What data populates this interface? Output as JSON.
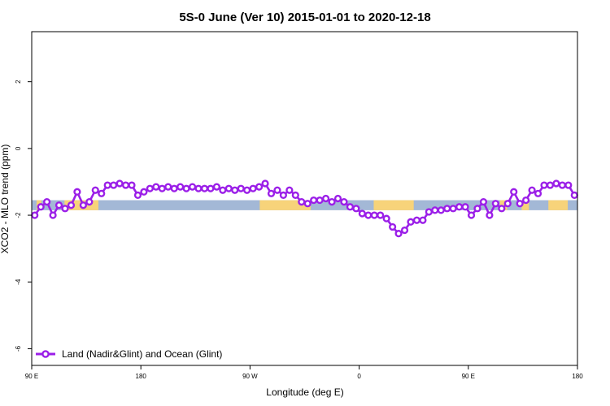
{
  "chart_data": {
    "type": "line",
    "title": "5S-0 June (Ver 10)   2015-01-01 to 2020-12-18",
    "xlabel": "Longitude (deg E)",
    "ylabel": "XCO2 - MLO trend (ppm)",
    "x_ticks": [
      {
        "value": 90,
        "label": "90 E"
      },
      {
        "value": 180,
        "label": "180"
      },
      {
        "value": 270,
        "label": "90 W"
      },
      {
        "value": 360,
        "label": "0"
      },
      {
        "value": 450,
        "label": "90 E"
      },
      {
        "value": 540,
        "label": "180"
      }
    ],
    "y_ticks": [
      {
        "value": 2,
        "label": "2"
      },
      {
        "value": 0,
        "label": "0"
      },
      {
        "value": -2,
        "label": "-2"
      },
      {
        "value": -4,
        "label": "-4"
      },
      {
        "value": -6,
        "label": "-6"
      }
    ],
    "xlim": [
      90,
      540
    ],
    "ylim": [
      -6.5,
      3.5
    ],
    "grid": false,
    "legend_position": "bottom-left",
    "band": {
      "y_range": [
        -1.85,
        -1.55
      ],
      "ocean_color": "#a3b8d6",
      "land_color": "#f7d37a",
      "land_segments": [
        [
          94,
          98
        ],
        [
          117,
          145
        ],
        [
          278,
          320
        ],
        [
          372,
          405
        ],
        [
          476,
          482
        ],
        [
          494,
          500
        ],
        [
          516,
          532
        ]
      ]
    },
    "series": [
      {
        "name": "Land (Nadir&Glint) and Ocean (Glint)",
        "color": "#9b1fe8",
        "x": [
          92.5,
          97.5,
          102.5,
          107.5,
          112.5,
          117.5,
          122.5,
          127.5,
          132.5,
          137.5,
          142.5,
          147.5,
          152.5,
          157.5,
          162.5,
          167.5,
          172.5,
          177.5,
          182.5,
          187.5,
          192.5,
          197.5,
          202.5,
          207.5,
          212.5,
          217.5,
          222.5,
          227.5,
          232.5,
          237.5,
          242.5,
          247.5,
          252.5,
          257.5,
          262.5,
          267.5,
          272.5,
          277.5,
          282.5,
          287.5,
          292.5,
          297.5,
          302.5,
          307.5,
          312.5,
          317.5,
          322.5,
          327.5,
          332.5,
          337.5,
          342.5,
          347.5,
          352.5,
          357.5,
          362.5,
          367.5,
          372.5,
          377.5,
          382.5,
          387.5,
          392.5,
          397.5,
          402.5,
          407.5,
          412.5,
          417.5,
          422.5,
          427.5,
          432.5,
          437.5,
          442.5,
          447.5,
          452.5,
          457.5,
          462.5,
          467.5,
          472.5,
          477.5,
          482.5,
          487.5,
          492.5,
          497.5,
          502.5,
          507.5,
          512.5,
          517.5,
          522.5,
          527.5,
          532.5,
          537.5
        ],
        "y": [
          -2.0,
          -1.75,
          -1.6,
          -2.0,
          -1.7,
          -1.8,
          -1.7,
          -1.3,
          -1.7,
          -1.6,
          -1.25,
          -1.35,
          -1.1,
          -1.1,
          -1.05,
          -1.1,
          -1.1,
          -1.4,
          -1.3,
          -1.2,
          -1.15,
          -1.2,
          -1.15,
          -1.2,
          -1.15,
          -1.2,
          -1.15,
          -1.2,
          -1.2,
          -1.2,
          -1.15,
          -1.25,
          -1.2,
          -1.25,
          -1.2,
          -1.25,
          -1.2,
          -1.15,
          -1.05,
          -1.35,
          -1.25,
          -1.4,
          -1.25,
          -1.4,
          -1.6,
          -1.65,
          -1.55,
          -1.55,
          -1.5,
          -1.6,
          -1.5,
          -1.6,
          -1.75,
          -1.8,
          -1.95,
          -2.0,
          -2.0,
          -2.0,
          -2.1,
          -2.35,
          -2.55,
          -2.45,
          -2.2,
          -2.15,
          -2.15,
          -1.9,
          -1.85,
          -1.85,
          -1.8,
          -1.8,
          -1.75,
          -1.75,
          -2.0,
          -1.8,
          -1.6,
          -2.0,
          -1.65,
          -1.8,
          -1.65,
          -1.3,
          -1.65,
          -1.55,
          -1.25,
          -1.35,
          -1.1,
          -1.1,
          -1.05,
          -1.1,
          -1.1,
          -1.4
        ]
      }
    ]
  }
}
